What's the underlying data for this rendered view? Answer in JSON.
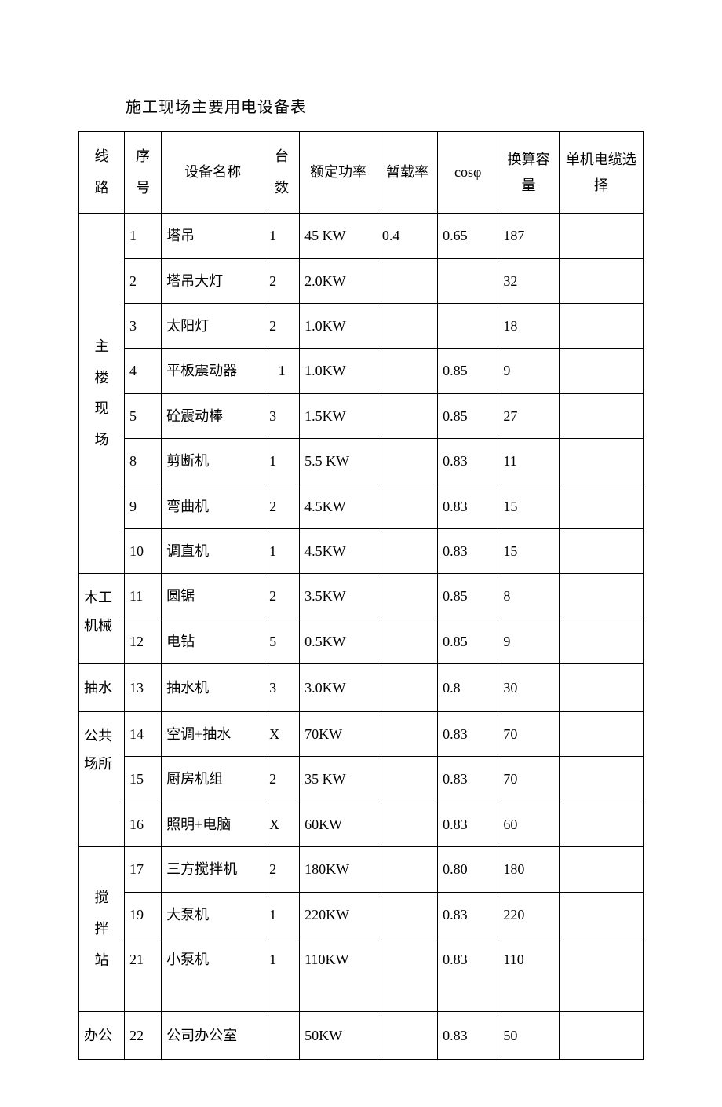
{
  "title": "施工现场主要用电设备表",
  "headers": {
    "route": "线路",
    "seq": "序号",
    "name": "设备名称",
    "qty": "台数",
    "power": "额定功率",
    "load": "暂载率",
    "cos": "cosφ",
    "cap": "换算容量",
    "cable": "单机电缆选择"
  },
  "groups": [
    {
      "route": "主楼现场",
      "vertical": true,
      "rows": [
        {
          "seq": "1",
          "name": "塔吊",
          "qty": "1",
          "power": "45 KW",
          "load": "0.4",
          "cos": "0.65",
          "cap": "187",
          "cable": ""
        },
        {
          "seq": "2",
          "name": "塔吊大灯",
          "qty": "2",
          "power": "2.0KW",
          "load": "",
          "cos": "",
          "cap": "32",
          "cable": ""
        },
        {
          "seq": "3",
          "name": "太阳灯",
          "qty": "2",
          "power": "1.0KW",
          "load": "",
          "cos": "",
          "cap": "18",
          "cable": ""
        },
        {
          "seq": "4",
          "name": "平板震动器",
          "qty": "1",
          "power": "1.0KW",
          "load": "",
          "cos": "0.85",
          "cap": "9",
          "cable": ""
        },
        {
          "seq": "5",
          "name": "砼震动棒",
          "qty": "3",
          "power": "1.5KW",
          "load": "",
          "cos": "0.85",
          "cap": "27",
          "cable": ""
        },
        {
          "seq": "8",
          "name": "剪断机",
          "qty": "1",
          "power": "5.5 KW",
          "load": "",
          "cos": "0.83",
          "cap": "11",
          "cable": ""
        },
        {
          "seq": "9",
          "name": "弯曲机",
          "qty": "2",
          "power": "4.5KW",
          "load": "",
          "cos": "0.83",
          "cap": "15",
          "cable": ""
        },
        {
          "seq": "10",
          "name": "调直机",
          "qty": "1",
          "power": "4.5KW",
          "load": "",
          "cos": "0.83",
          "cap": "15",
          "cable": ""
        }
      ]
    },
    {
      "route": "木工机械",
      "vertical": false,
      "rows": [
        {
          "seq": "11",
          "name": "圆锯",
          "qty": "2",
          "power": "3.5KW",
          "load": "",
          "cos": "0.85",
          "cap": "8",
          "cable": ""
        },
        {
          "seq": "12",
          "name": "电钻",
          "qty": "5",
          "power": "0.5KW",
          "load": "",
          "cos": "0.85",
          "cap": "9",
          "cable": ""
        }
      ]
    },
    {
      "route": "抽水",
      "vertical": false,
      "rows": [
        {
          "seq": "13",
          "name": "抽水机",
          "qty": "3",
          "power": "3.0KW",
          "load": "",
          "cos": "0.8",
          "cap": "30",
          "cable": ""
        }
      ]
    },
    {
      "route": "公共场所",
      "vertical": false,
      "rows": [
        {
          "seq": "14",
          "name": "空调+抽水",
          "qty": "X",
          "power": "70KW",
          "load": "",
          "cos": "0.83",
          "cap": "70",
          "cable": ""
        },
        {
          "seq": "15",
          "name": "厨房机组",
          "qty": "2",
          "power": "35 KW",
          "load": "",
          "cos": "0.83",
          "cap": "70",
          "cable": ""
        },
        {
          "seq": "16",
          "name": "照明+电脑",
          "qty": "X",
          "power": "60KW",
          "load": "",
          "cos": "0.83",
          "cap": "60",
          "cable": ""
        }
      ]
    },
    {
      "route": "搅拌站",
      "vertical": true,
      "tall": true,
      "rows": [
        {
          "seq": "17",
          "name": "三方搅拌机",
          "qty": "2",
          "power": "180KW",
          "load": "",
          "cos": "0.80",
          "cap": "180",
          "cable": ""
        },
        {
          "seq": "19",
          "name": "大泵机",
          "qty": "1",
          "power": "220KW",
          "load": "",
          "cos": "0.83",
          "cap": "220",
          "cable": ""
        },
        {
          "seq": "21",
          "name": "小泵机",
          "qty": "1",
          "power": "110KW",
          "load": "",
          "cos": "0.83",
          "cap": "110",
          "cable": ""
        }
      ]
    },
    {
      "route": "办公",
      "vertical": false,
      "rows": [
        {
          "seq": "22",
          "name": "公司办公室",
          "qty": "",
          "power": "50KW",
          "load": "",
          "cos": "0.83",
          "cap": "50",
          "cable": ""
        }
      ]
    }
  ]
}
